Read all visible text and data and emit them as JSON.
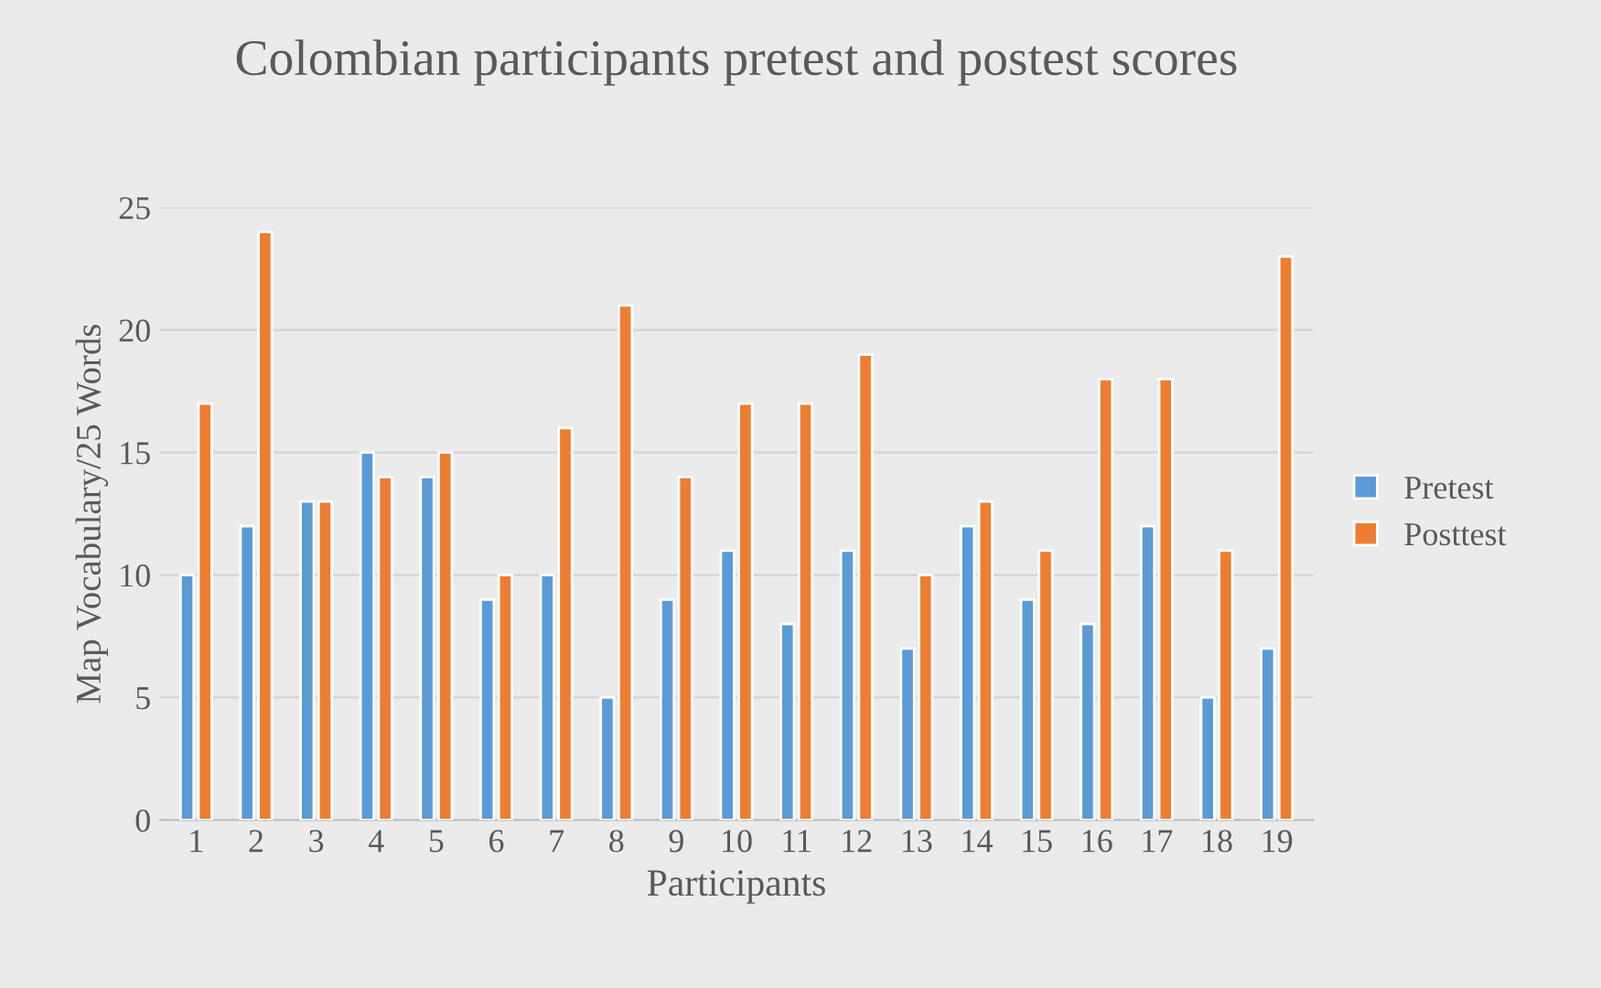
{
  "chart_data": {
    "type": "bar",
    "title": "Colombian participants pretest and postest scores",
    "xlabel": "Participants",
    "ylabel": "Map Vocabulary/25 Words",
    "categories": [
      "1",
      "2",
      "3",
      "4",
      "5",
      "6",
      "7",
      "8",
      "9",
      "10",
      "11",
      "12",
      "13",
      "14",
      "15",
      "16",
      "17",
      "18",
      "19"
    ],
    "series": [
      {
        "name": "Pretest",
        "color": "#5b9bd5",
        "values": [
          10,
          12,
          13,
          15,
          14,
          9,
          10,
          5,
          9,
          11,
          8,
          11,
          7,
          12,
          9,
          8,
          12,
          5,
          7
        ]
      },
      {
        "name": "Posttest",
        "color": "#ed7d31",
        "values": [
          17,
          24,
          13,
          14,
          15,
          10,
          16,
          21,
          14,
          17,
          17,
          19,
          10,
          13,
          11,
          18,
          18,
          11,
          23
        ]
      }
    ],
    "ylim": [
      0,
      25
    ],
    "yticks": [
      0,
      5,
      10,
      15,
      20,
      25
    ],
    "grid": "y",
    "legend": "right"
  }
}
